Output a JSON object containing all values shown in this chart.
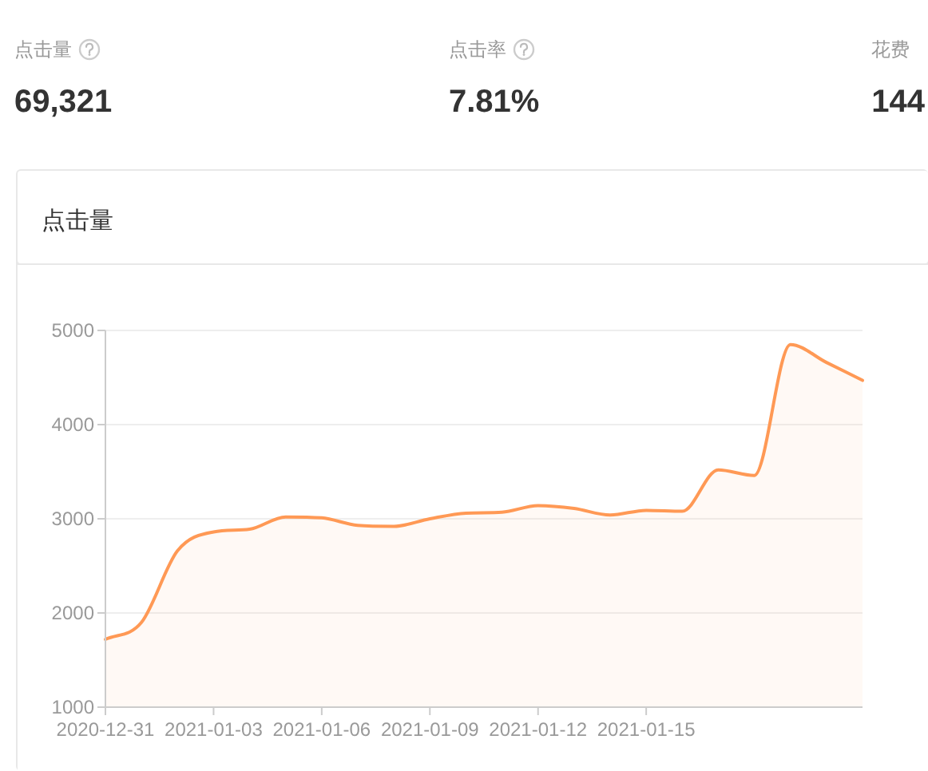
{
  "chart_data": [
    {
      "type": "other",
      "categories": [
        "点击量",
        "点击率",
        "花费"
      ],
      "value_labels": [
        "69,321",
        "7.81%",
        "144"
      ]
    },
    {
      "type": "area",
      "title": "点击量",
      "categories": [
        "2020-12-31",
        null,
        null,
        "2021-01-03",
        null,
        null,
        "2021-01-06",
        null,
        null,
        "2021-01-09",
        null,
        null,
        "2021-01-12",
        null,
        null,
        "2021-01-15",
        null,
        null,
        null,
        null,
        null,
        null
      ],
      "series": [
        {
          "color": "#ff9955",
          "values": [
            1720,
            1900,
            2660,
            2860,
            2890,
            3020,
            3010,
            2930,
            2920,
            3000,
            3060,
            3070,
            3140,
            3110,
            3040,
            3090,
            3080,
            3520,
            3460,
            4850,
            4660,
            4470
          ]
        }
      ],
      "ylim": [
        1000,
        5000
      ],
      "yticks": [
        1000,
        2000,
        3000,
        4000,
        5000
      ],
      "grid": "y"
    }
  ]
}
